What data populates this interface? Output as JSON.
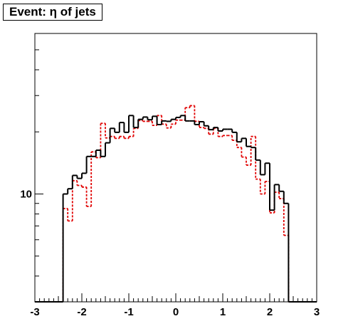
{
  "chart_data": {
    "type": "step-histogram",
    "title": "Event: η of jets",
    "xlabel": "",
    "ylabel": "",
    "xlim": [
      -3,
      3
    ],
    "ylim": [
      3,
      60
    ],
    "log_y": true,
    "grid": false,
    "x_ticks": [
      -3,
      -2,
      -1,
      0,
      1,
      2,
      3
    ],
    "x_tick_labels": [
      "-3",
      "-2",
      "-1",
      "0",
      "1",
      "2",
      "3"
    ],
    "y_ticks": [
      10
    ],
    "y_tick_labels": [
      "10"
    ],
    "bin_edges": [
      -3.0,
      -2.4,
      -2.3,
      -2.2,
      -2.1,
      -2.0,
      -1.9,
      -1.8,
      -1.7,
      -1.6,
      -1.5,
      -1.4,
      -1.3,
      -1.2,
      -1.1,
      -1.0,
      -0.9,
      -0.8,
      -0.7,
      -0.6,
      -0.5,
      -0.4,
      -0.3,
      -0.2,
      -0.1,
      0.0,
      0.1,
      0.2,
      0.3,
      0.4,
      0.5,
      0.6,
      0.7,
      0.8,
      0.9,
      1.0,
      1.1,
      1.2,
      1.3,
      1.4,
      1.5,
      1.6,
      1.7,
      1.8,
      1.9,
      2.0,
      2.1,
      2.2,
      2.3,
      2.4,
      3.0
    ],
    "series": [
      {
        "style": "solid",
        "color": "#000000",
        "values": [
          0,
          10.0,
          10.6,
          12.3,
          11.9,
          12.6,
          15.2,
          15.2,
          16.3,
          15.2,
          17.7,
          20.8,
          19.9,
          22.2,
          19.9,
          24.0,
          21.0,
          23.0,
          23.6,
          22.9,
          23.8,
          21.7,
          22.6,
          22.5,
          23.0,
          23.5,
          24.0,
          22.6,
          22.6,
          21.7,
          22.4,
          21.4,
          20.5,
          21.0,
          20.2,
          20.6,
          20.6,
          19.9,
          17.9,
          18.6,
          17.0,
          16.8,
          14.6,
          12.4,
          14.1,
          8.35,
          11.1,
          10.3,
          9.0,
          0
        ]
      },
      {
        "style": "dotted",
        "color": "#e00000",
        "values": [
          0,
          8.5,
          7.4,
          11.6,
          11.0,
          10.8,
          8.7,
          16.0,
          15.0,
          22.0,
          18.7,
          19.0,
          18.6,
          19.0,
          18.6,
          19.0,
          20.8,
          22.7,
          22.5,
          22.5,
          21.5,
          24.0,
          21.8,
          20.9,
          21.8,
          22.8,
          22.8,
          26.2,
          26.8,
          22.5,
          21.0,
          20.8,
          19.5,
          20.8,
          19.0,
          19.2,
          19.2,
          18.2,
          16.8,
          15.1,
          13.8,
          19.0,
          11.8,
          10.0,
          11.5,
          8.1,
          10.2,
          9.5,
          6.3,
          0
        ]
      }
    ]
  }
}
